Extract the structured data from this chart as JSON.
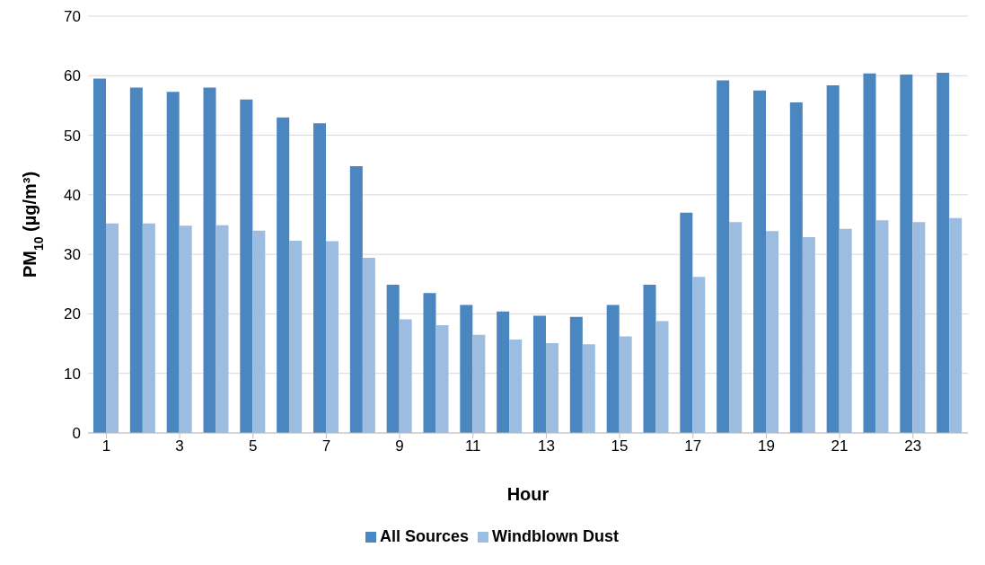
{
  "chart_data": {
    "type": "bar",
    "xlabel": "Hour",
    "ylabel": "PM$_{10}$ (µg/m³)",
    "x": [
      1,
      2,
      3,
      4,
      5,
      6,
      7,
      8,
      9,
      10,
      11,
      12,
      13,
      14,
      15,
      16,
      17,
      18,
      19,
      20,
      21,
      22,
      23,
      24
    ],
    "xlim": [
      0.5,
      24.5
    ],
    "xticks": [
      1,
      3,
      5,
      7,
      9,
      11,
      13,
      15,
      17,
      19,
      21,
      23
    ],
    "series": [
      {
        "name": "All Sources",
        "color": "#4a86c0",
        "values": [
          59.5,
          58,
          57.3,
          58,
          56,
          53,
          52,
          44.8,
          24.9,
          23.5,
          21.5,
          20.4,
          19.7,
          19.5,
          21.5,
          24.9,
          37,
          59.2,
          57.5,
          55.5,
          58.4,
          60.4,
          60.2,
          60.5
        ]
      },
      {
        "name": "Windblown Dust",
        "color": "#9cbde0",
        "values": [
          35.2,
          35.2,
          34.8,
          34.9,
          34,
          32.3,
          32.2,
          29.4,
          19.1,
          18.1,
          16.5,
          15.7,
          15.1,
          14.9,
          16.2,
          18.8,
          26.2,
          35.4,
          33.9,
          32.9,
          34.3,
          35.7,
          35.4,
          36.1
        ]
      }
    ],
    "ylim": [
      0,
      70
    ],
    "yticks": [
      0,
      10,
      20,
      30,
      40,
      50,
      60,
      70
    ],
    "grid": "y",
    "legend": "bottom"
  }
}
